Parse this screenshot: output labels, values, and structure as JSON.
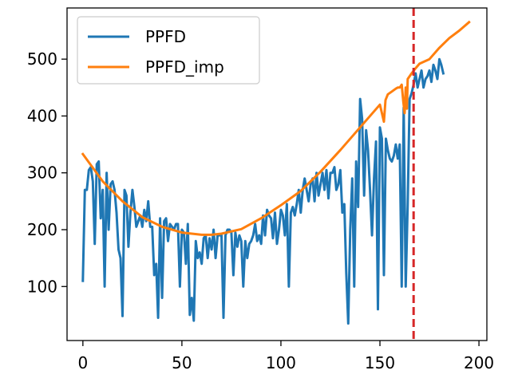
{
  "chart_data": {
    "type": "line",
    "xlim": [
      -8,
      204
    ],
    "ylim": [
      5,
      590
    ],
    "xticks": [
      0,
      50,
      100,
      150,
      200
    ],
    "yticks": [
      100,
      200,
      300,
      400,
      500
    ],
    "grid": false,
    "legend_position": "top-left",
    "vline": {
      "x": 167,
      "color": "#d62728",
      "style": "dashed"
    },
    "series": [
      {
        "name": "PPFD",
        "color": "#1f77b4",
        "x": [
          0,
          1,
          2,
          3,
          4,
          5,
          6,
          7,
          8,
          9,
          10,
          11,
          12,
          13,
          14,
          15,
          16,
          17,
          18,
          19,
          20,
          21,
          22,
          23,
          24,
          25,
          26,
          27,
          28,
          29,
          30,
          31,
          32,
          33,
          34,
          35,
          36,
          37,
          38,
          39,
          40,
          41,
          42,
          43,
          44,
          45,
          46,
          47,
          48,
          49,
          50,
          51,
          52,
          53,
          54,
          55,
          56,
          57,
          58,
          59,
          60,
          61,
          62,
          63,
          64,
          65,
          66,
          67,
          68,
          69,
          70,
          71,
          72,
          73,
          74,
          75,
          76,
          77,
          78,
          79,
          80,
          81,
          82,
          83,
          84,
          85,
          86,
          87,
          88,
          89,
          90,
          91,
          92,
          93,
          94,
          95,
          96,
          97,
          98,
          99,
          100,
          101,
          102,
          103,
          104,
          105,
          106,
          107,
          108,
          109,
          110,
          111,
          112,
          113,
          114,
          115,
          116,
          117,
          118,
          119,
          120,
          121,
          122,
          123,
          124,
          125,
          126,
          127,
          128,
          129,
          130,
          131,
          132,
          133,
          134,
          135,
          136,
          137,
          138,
          139,
          140,
          141,
          142,
          143,
          144,
          145,
          146,
          147,
          148,
          149,
          150,
          151,
          152,
          153,
          154,
          155,
          156,
          157,
          158,
          159,
          160,
          161,
          162,
          163,
          164,
          165,
          166,
          167,
          168,
          169,
          170,
          171,
          172,
          173,
          174,
          175,
          176,
          177,
          178,
          179,
          180,
          181,
          182
        ],
        "values": [
          110,
          270,
          270,
          305,
          310,
          285,
          175,
          315,
          320,
          220,
          270,
          100,
          300,
          200,
          280,
          285,
          270,
          230,
          165,
          150,
          48,
          270,
          260,
          170,
          230,
          270,
          240,
          205,
          215,
          225,
          205,
          235,
          215,
          250,
          205,
          205,
          120,
          140,
          45,
          220,
          80,
          215,
          220,
          180,
          210,
          205,
          200,
          210,
          210,
          100,
          200,
          195,
          140,
          210,
          50,
          80,
          40,
          180,
          150,
          160,
          140,
          185,
          190,
          150,
          185,
          165,
          200,
          150,
          190,
          190,
          190,
          45,
          190,
          200,
          200,
          195,
          120,
          195,
          170,
          190,
          180,
          100,
          180,
          150,
          175,
          180,
          190,
          210,
          180,
          190,
          175,
          225,
          190,
          235,
          225,
          220,
          185,
          230,
          175,
          200,
          235,
          225,
          190,
          245,
          100,
          230,
          240,
          225,
          245,
          270,
          230,
          270,
          290,
          270,
          250,
          280,
          290,
          250,
          300,
          260,
          280,
          300,
          270,
          305,
          255,
          300,
          300,
          310,
          270,
          280,
          305,
          230,
          245,
          125,
          35,
          200,
          290,
          100,
          320,
          240,
          430,
          395,
          260,
          375,
          340,
          270,
          190,
          290,
          355,
          60,
          380,
          360,
          120,
          360,
          340,
          325,
          320,
          330,
          350,
          325,
          350,
          100,
          415,
          100,
          245,
          430,
          440,
          455,
          475,
          450,
          465,
          480,
          450,
          465,
          470,
          480,
          460,
          490,
          480,
          465,
          500,
          490,
          475
        ]
      },
      {
        "name": "PPFD_imp",
        "color": "#ff7f0e",
        "x": [
          0,
          10,
          20,
          30,
          40,
          50,
          60,
          65,
          70,
          80,
          90,
          100,
          110,
          120,
          130,
          140,
          150,
          152,
          152.8,
          154,
          156,
          158,
          159,
          160,
          161,
          161.8,
          162.5,
          163,
          163.6,
          164,
          166,
          168,
          170,
          175,
          180,
          185,
          190,
          195
        ],
        "values": [
          333,
          285,
          250,
          222,
          205,
          195,
          191,
          191,
          193,
          201,
          220,
          243,
          268,
          302,
          340,
          380,
          420,
          390,
          428,
          438,
          443,
          448,
          450,
          450,
          455,
          425,
          405,
          450,
          413,
          465,
          475,
          484,
          492,
          500,
          520,
          537,
          550,
          565
        ]
      }
    ]
  }
}
